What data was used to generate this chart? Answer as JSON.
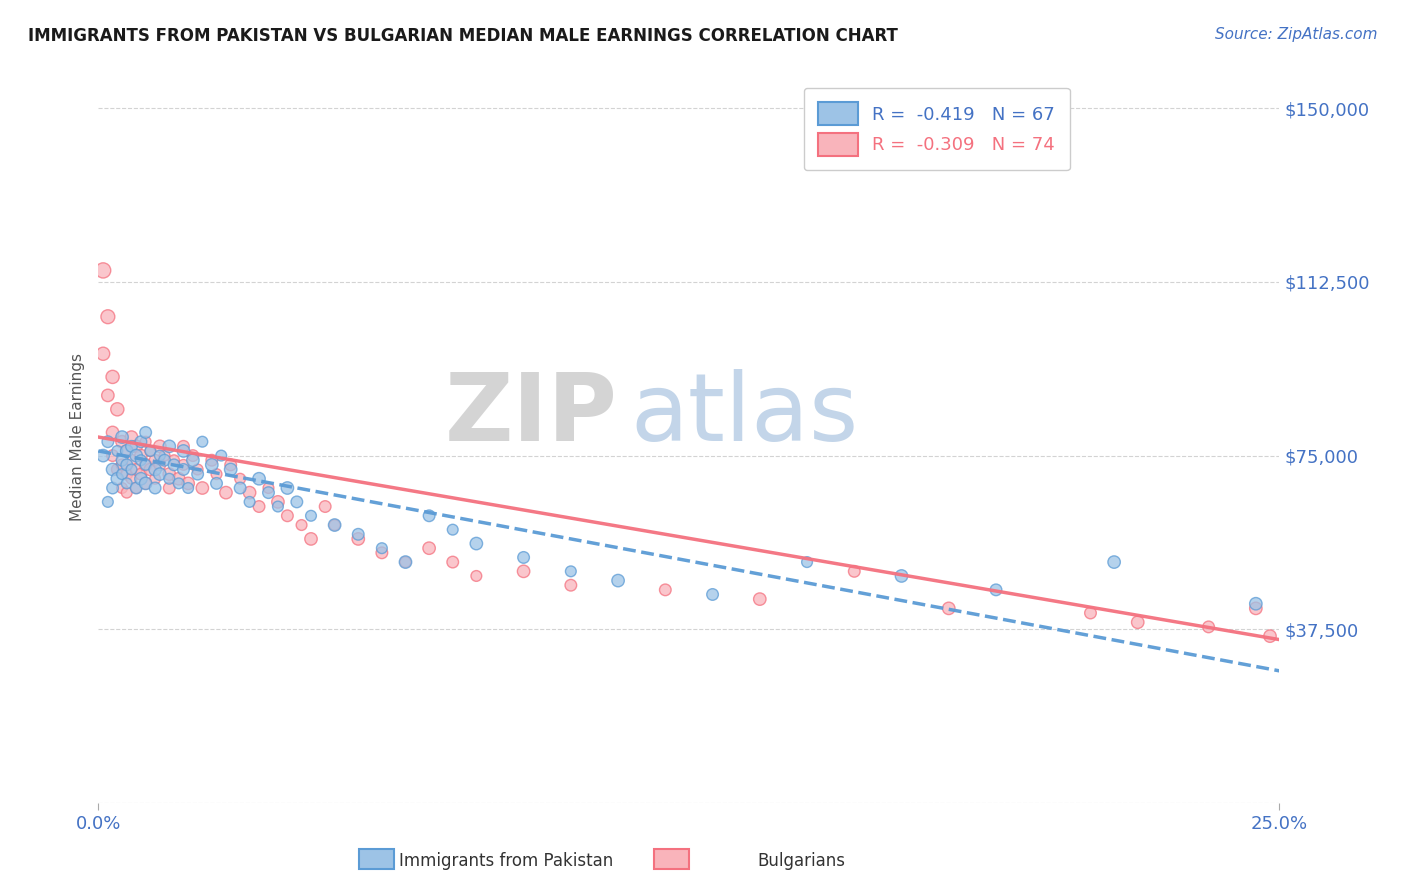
{
  "title": "IMMIGRANTS FROM PAKISTAN VS BULGARIAN MEDIAN MALE EARNINGS CORRELATION CHART",
  "source": "Source: ZipAtlas.com",
  "ylabel": "Median Male Earnings",
  "y_ticks": [
    0,
    37500,
    75000,
    112500,
    150000
  ],
  "y_tick_labels": [
    "",
    "$37,500",
    "$75,000",
    "$112,500",
    "$150,000"
  ],
  "x_min": 0.0,
  "x_max": 0.25,
  "y_min": 10000,
  "y_max": 158000,
  "pakistan_color": "#5b9bd5",
  "pakistan_color_fill": "#9dc3e6",
  "bulgarian_color": "#f4717f",
  "bulgarian_color_fill": "#f9b4bb",
  "pakistan_R": -0.419,
  "pakistan_N": 67,
  "bulgarian_R": -0.309,
  "bulgarian_N": 74,
  "legend_label_1": "Immigrants from Pakistan",
  "legend_label_2": "Bulgarians",
  "watermark_ZIP": "ZIP",
  "watermark_atlas": "atlas",
  "title_color": "#1a1a1a",
  "axis_label_color": "#4472c4",
  "pakistan_scatter_x": [
    0.001,
    0.002,
    0.002,
    0.003,
    0.003,
    0.004,
    0.004,
    0.005,
    0.005,
    0.005,
    0.006,
    0.006,
    0.006,
    0.007,
    0.007,
    0.008,
    0.008,
    0.009,
    0.009,
    0.009,
    0.01,
    0.01,
    0.01,
    0.011,
    0.012,
    0.012,
    0.013,
    0.013,
    0.014,
    0.015,
    0.015,
    0.016,
    0.017,
    0.018,
    0.018,
    0.019,
    0.02,
    0.021,
    0.022,
    0.024,
    0.025,
    0.026,
    0.028,
    0.03,
    0.032,
    0.034,
    0.036,
    0.038,
    0.04,
    0.042,
    0.045,
    0.05,
    0.055,
    0.06,
    0.065,
    0.07,
    0.075,
    0.08,
    0.09,
    0.1,
    0.11,
    0.13,
    0.15,
    0.17,
    0.19,
    0.215,
    0.245
  ],
  "pakistan_scatter_y": [
    75000,
    78000,
    65000,
    72000,
    68000,
    76000,
    70000,
    74000,
    71000,
    79000,
    73000,
    69000,
    76000,
    77000,
    72000,
    75000,
    68000,
    74000,
    70000,
    78000,
    73000,
    69000,
    80000,
    76000,
    72000,
    68000,
    75000,
    71000,
    74000,
    70000,
    77000,
    73000,
    69000,
    76000,
    72000,
    68000,
    74000,
    71000,
    78000,
    73000,
    69000,
    75000,
    72000,
    68000,
    65000,
    70000,
    67000,
    64000,
    68000,
    65000,
    62000,
    60000,
    58000,
    55000,
    52000,
    62000,
    59000,
    56000,
    53000,
    50000,
    48000,
    45000,
    52000,
    49000,
    46000,
    52000,
    43000
  ],
  "pakistan_scatter_sizes": [
    80,
    70,
    60,
    80,
    70,
    60,
    80,
    70,
    60,
    80,
    70,
    60,
    80,
    70,
    60,
    80,
    70,
    60,
    80,
    70,
    60,
    80,
    70,
    60,
    80,
    70,
    60,
    80,
    70,
    60,
    80,
    70,
    60,
    80,
    70,
    60,
    80,
    70,
    60,
    80,
    70,
    60,
    80,
    70,
    60,
    80,
    70,
    60,
    80,
    70,
    60,
    80,
    70,
    60,
    80,
    70,
    60,
    80,
    70,
    60,
    80,
    70,
    60,
    80,
    70,
    80,
    80
  ],
  "bulgarian_scatter_x": [
    0.001,
    0.001,
    0.002,
    0.002,
    0.003,
    0.003,
    0.003,
    0.004,
    0.004,
    0.005,
    0.005,
    0.005,
    0.006,
    0.006,
    0.006,
    0.007,
    0.007,
    0.007,
    0.008,
    0.008,
    0.008,
    0.009,
    0.009,
    0.01,
    0.01,
    0.01,
    0.011,
    0.011,
    0.012,
    0.012,
    0.013,
    0.013,
    0.014,
    0.015,
    0.015,
    0.016,
    0.017,
    0.018,
    0.018,
    0.019,
    0.02,
    0.021,
    0.022,
    0.024,
    0.025,
    0.027,
    0.028,
    0.03,
    0.032,
    0.034,
    0.036,
    0.038,
    0.04,
    0.043,
    0.045,
    0.048,
    0.05,
    0.055,
    0.06,
    0.065,
    0.07,
    0.075,
    0.08,
    0.09,
    0.1,
    0.12,
    0.14,
    0.16,
    0.18,
    0.21,
    0.22,
    0.235,
    0.245,
    0.248
  ],
  "bulgarian_scatter_y": [
    115000,
    97000,
    105000,
    88000,
    92000,
    80000,
    75000,
    85000,
    72000,
    78000,
    73000,
    68000,
    76000,
    71000,
    67000,
    79000,
    74000,
    70000,
    77000,
    72000,
    68000,
    75000,
    71000,
    78000,
    73000,
    69000,
    76000,
    72000,
    74000,
    70000,
    77000,
    73000,
    75000,
    71000,
    68000,
    74000,
    70000,
    77000,
    73000,
    69000,
    75000,
    72000,
    68000,
    74000,
    71000,
    67000,
    73000,
    70000,
    67000,
    64000,
    68000,
    65000,
    62000,
    60000,
    57000,
    64000,
    60000,
    57000,
    54000,
    52000,
    55000,
    52000,
    49000,
    50000,
    47000,
    46000,
    44000,
    50000,
    42000,
    41000,
    39000,
    38000,
    42000,
    36000
  ],
  "bulgarian_scatter_sizes": [
    120,
    90,
    100,
    80,
    90,
    80,
    70,
    90,
    70,
    80,
    70,
    60,
    80,
    70,
    60,
    80,
    70,
    60,
    80,
    70,
    60,
    80,
    70,
    60,
    80,
    70,
    60,
    80,
    70,
    60,
    80,
    70,
    60,
    80,
    70,
    60,
    80,
    70,
    60,
    80,
    70,
    60,
    80,
    70,
    60,
    80,
    70,
    60,
    80,
    70,
    60,
    80,
    70,
    60,
    80,
    70,
    60,
    80,
    70,
    60,
    80,
    70,
    60,
    80,
    70,
    70,
    80,
    70,
    80,
    70,
    80,
    70,
    80,
    80
  ]
}
